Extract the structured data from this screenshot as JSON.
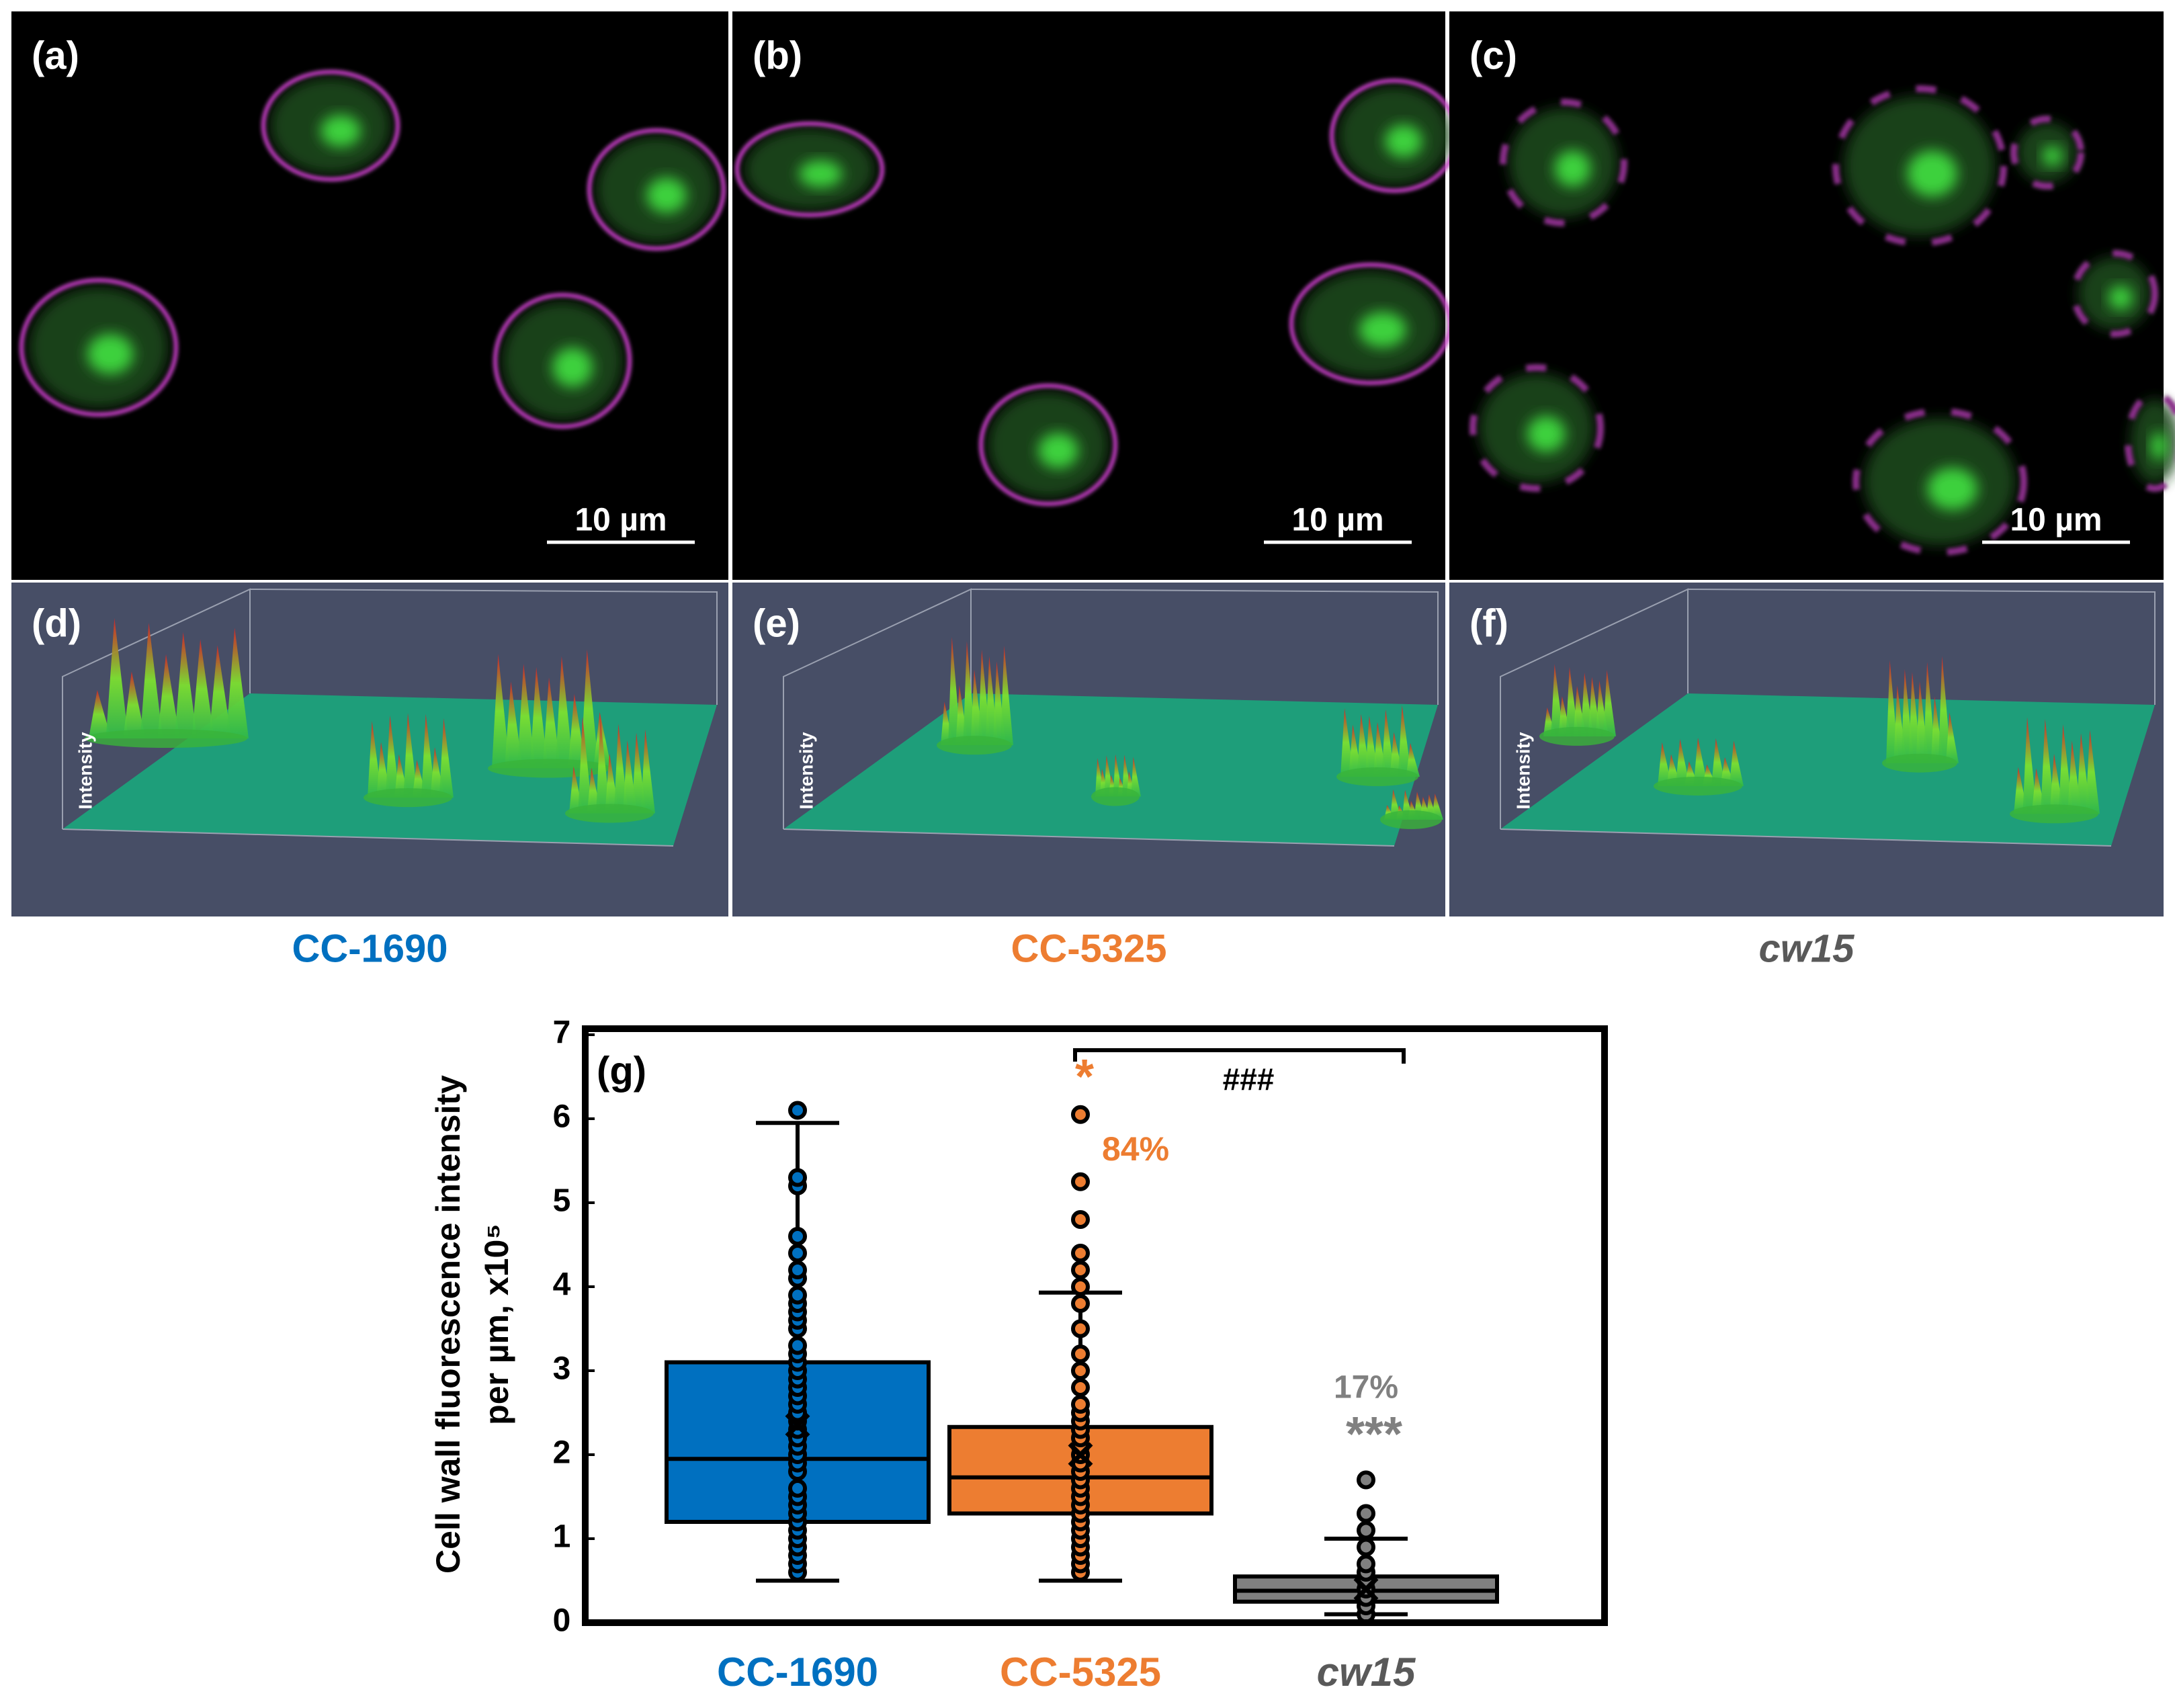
{
  "panels": [
    {
      "label": "(a)",
      "scale_bar": "10 µm"
    },
    {
      "label": "(b)",
      "scale_bar": "10 µm"
    },
    {
      "label": "(c)",
      "scale_bar": "10 µm"
    },
    {
      "label": "(d)",
      "axis_label": "Intensity"
    },
    {
      "label": "(e)",
      "axis_label": "Intensity"
    },
    {
      "label": "(f)",
      "axis_label": "Intensity"
    }
  ],
  "chart_data": {
    "type": "box",
    "label": "(g)",
    "y_label": [
      "Cell wall fluorescence intensity",
      "per µm, x10⁵"
    ],
    "ylim": [
      0,
      7
    ],
    "yticks": [
      0,
      1,
      2,
      3,
      4,
      5,
      6,
      7
    ],
    "series": [
      {
        "name": "CC-1690",
        "color": "#0070c0",
        "label_color": "#0070c0",
        "min": 0.5,
        "q1": 1.2,
        "median": 1.95,
        "q3": 3.1,
        "max": 5.95,
        "mean": 2.35,
        "points": [
          0.6,
          0.7,
          0.8,
          0.9,
          1.0,
          1.1,
          1.2,
          1.3,
          1.4,
          1.5,
          1.6,
          1.8,
          1.9,
          2.0,
          2.1,
          2.2,
          2.3,
          2.4,
          2.5,
          2.6,
          2.7,
          2.8,
          2.9,
          3.0,
          3.1,
          3.2,
          3.3,
          3.5,
          3.6,
          3.7,
          3.8,
          3.9,
          4.1,
          4.2,
          4.4,
          4.6,
          5.2,
          5.3,
          6.1
        ]
      },
      {
        "name": "CC-5325",
        "color": "#ed7d31",
        "label_color": "#ed7d31",
        "min": 0.5,
        "q1": 1.3,
        "median": 1.73,
        "q3": 2.33,
        "max": 3.93,
        "mean": 2.0,
        "points": [
          0.6,
          0.7,
          0.8,
          0.9,
          1.0,
          1.1,
          1.2,
          1.3,
          1.4,
          1.5,
          1.6,
          1.7,
          1.8,
          1.9,
          2.0,
          2.1,
          2.2,
          2.3,
          2.4,
          2.5,
          2.6,
          2.8,
          3.0,
          3.2,
          3.5,
          3.8,
          4.0,
          4.2,
          4.4,
          4.8,
          5.25,
          6.05
        ]
      },
      {
        "name": "cw15",
        "color": "#808080",
        "label_color": "#595959",
        "font_style": "italic",
        "min": 0.1,
        "q1": 0.25,
        "median": 0.38,
        "q3": 0.55,
        "max": 1.0,
        "mean": 0.4,
        "points": [
          0.1,
          0.2,
          0.3,
          0.4,
          0.5,
          0.6,
          0.7,
          0.9,
          1.1,
          1.3,
          1.7
        ]
      }
    ],
    "annotations": [
      {
        "text": "*",
        "color": "#ed7d31"
      },
      {
        "text": "84%",
        "color": "#ed7d31"
      },
      {
        "text": "###",
        "color": "#000000"
      },
      {
        "text": "17%",
        "color": "#808080"
      },
      {
        "text": "***",
        "color": "#808080"
      }
    ]
  }
}
